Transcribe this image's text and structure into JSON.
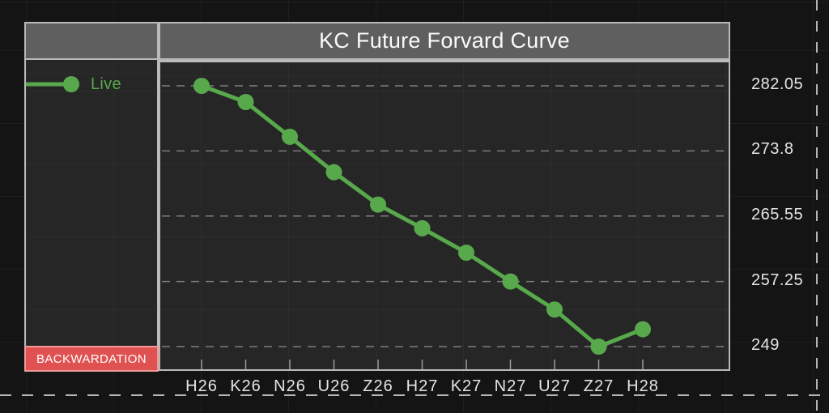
{
  "header": {
    "title": "KC Future Forvard Curve"
  },
  "legend": {
    "series_label": "Live",
    "badge_label": "BACKWARDATION"
  },
  "colors": {
    "series_green": "#58a84c",
    "badge_bg": "#e05151",
    "badge_border": "#f09a9a",
    "panel_header_bg": "#5f5f5f",
    "panel_border": "#b9b9b9",
    "grid_dash": "#7d7d7d",
    "axis_text": "#e5e5e5"
  },
  "chart_data": {
    "type": "line",
    "title": "KC Future Forvard Curve",
    "categories": [
      "H26",
      "K26",
      "N26",
      "U26",
      "Z26",
      "H27",
      "K27",
      "N27",
      "U27",
      "Z27",
      "H28"
    ],
    "series": [
      {
        "name": "Live",
        "color": "#58a84c",
        "values": [
          282.05,
          280.0,
          275.6,
          271.1,
          267.0,
          264.0,
          260.9,
          257.25,
          253.7,
          249.0,
          251.2
        ]
      }
    ],
    "y_ticks": [
      282.05,
      273.8,
      265.55,
      257.25,
      249
    ],
    "ylim": [
      249,
      282.05
    ],
    "xlabel": "",
    "ylabel": "",
    "grid": "horizontal-dashed",
    "legend_position": "left",
    "annotation": "BACKWARDATION",
    "curve_shape": "downward sloping (backwardation) with uptick at last contract"
  }
}
